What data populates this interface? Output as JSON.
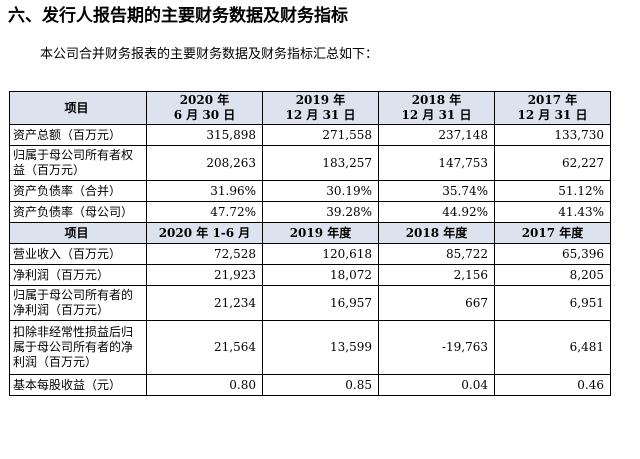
{
  "heading": "六、发行人报告期的主要财务数据及财务指标",
  "intro": "本公司合并财务报表的主要财务数据及财务指标汇总如下：",
  "table1": {
    "header": {
      "item": "项目",
      "cols": [
        {
          "line1": "2020 年",
          "line2": "6 月 30 日"
        },
        {
          "line1": "2019 年",
          "line2": "12 月 31 日"
        },
        {
          "line1": "2018 年",
          "line2": "12 月 31 日"
        },
        {
          "line1": "2017 年",
          "line2": "12 月 31 日"
        }
      ]
    },
    "rows": [
      {
        "label": "资产总额（百万元）",
        "values": [
          "315,898",
          "271,558",
          "237,148",
          "133,730"
        ]
      },
      {
        "label": "归属于母公司所有者权益（百万元）",
        "values": [
          "208,263",
          "183,257",
          "147,753",
          "62,227"
        ]
      },
      {
        "label": "资产负债率（合并）",
        "values": [
          "31.96%",
          "30.19%",
          "35.74%",
          "51.12%"
        ]
      },
      {
        "label": "资产负债率（母公司）",
        "values": [
          "47.72%",
          "39.28%",
          "44.92%",
          "41.43%"
        ]
      }
    ]
  },
  "table2": {
    "header": {
      "item": "项目",
      "cols": [
        "2020 年 1-6 月",
        "2019 年度",
        "2018 年度",
        "2017 年度"
      ]
    },
    "rows": [
      {
        "label": "营业收入（百万元）",
        "values": [
          "72,528",
          "120,618",
          "85,722",
          "65,396"
        ]
      },
      {
        "label": "净利润（百万元）",
        "values": [
          "21,923",
          "18,072",
          "2,156",
          "8,205"
        ]
      },
      {
        "label": "归属于母公司所有者的净利润（百万元）",
        "values": [
          "21,234",
          "16,957",
          "667",
          "6,951"
        ]
      },
      {
        "label": "扣除非经常性损益后归属于母公司所有者的净利润（百万元）",
        "values": [
          "21,564",
          "13,599",
          "-19,763",
          "6,481"
        ]
      },
      {
        "label": "基本每股收益（元）",
        "values": [
          "0.80",
          "0.85",
          "0.04",
          "0.46"
        ]
      }
    ]
  }
}
